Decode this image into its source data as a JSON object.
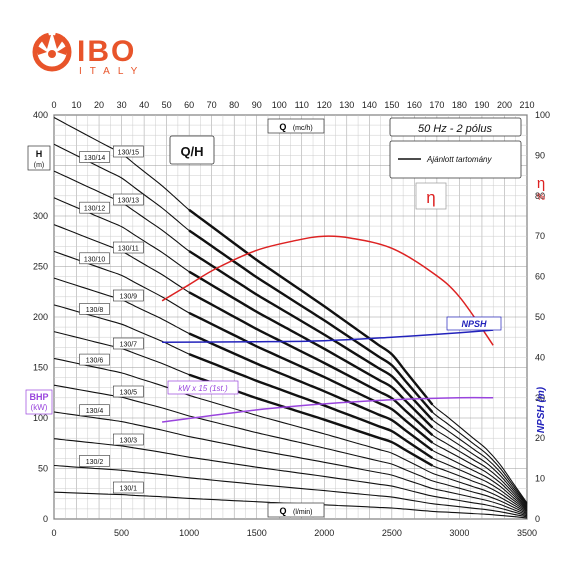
{
  "brand": {
    "name": "IBO",
    "sub": "ITALY",
    "color": "#e8542a"
  },
  "chart_data": {
    "type": "line",
    "title": "Q/H",
    "frequency_label": "50 Hz - 2 pólus",
    "legend_label": "Ajánlott tartomány",
    "x_bottom": {
      "label": "Q",
      "unit": "(l/min)",
      "range": [
        0,
        3500
      ],
      "ticks": [
        0,
        500,
        1000,
        1500,
        2000,
        2500,
        3000,
        3500
      ]
    },
    "x_top": {
      "label": "Q",
      "unit": "(mc/h)",
      "range": [
        0,
        210
      ],
      "ticks": [
        0,
        10,
        20,
        30,
        40,
        50,
        60,
        70,
        80,
        90,
        100,
        110,
        120,
        130,
        140,
        150,
        160,
        170,
        180,
        190,
        200,
        210
      ]
    },
    "y_left": {
      "label": "H",
      "unit": "(m)",
      "range": [
        0,
        400
      ],
      "ticks": [
        0,
        50,
        100,
        150,
        200,
        250,
        300,
        350,
        400
      ]
    },
    "y_left_bhp": {
      "label": "BHP",
      "unit": "(kW)"
    },
    "y_right_eta": {
      "label": "η",
      "unit": "%",
      "range": [
        0,
        100
      ],
      "ticks": [
        0,
        10,
        20,
        30,
        40,
        50,
        60,
        70,
        80,
        90,
        100
      ]
    },
    "y_right_npsh": {
      "label": "NPSH (m)"
    },
    "eta_symbol": "η",
    "npsh_label": "NPSH",
    "kw_label": "kW x 15 (1st.)",
    "colors": {
      "hq": "#111111",
      "eta": "#dd2222",
      "npsh": "#2222bb",
      "kw": "#9944dd"
    },
    "hq_series": [
      {
        "name": "130/1",
        "shutoff": 26.5
      },
      {
        "name": "130/2",
        "shutoff": 53
      },
      {
        "name": "130/3",
        "shutoff": 79.5
      },
      {
        "name": "130/4",
        "shutoff": 106
      },
      {
        "name": "130/5",
        "shutoff": 132.5
      },
      {
        "name": "130/6",
        "shutoff": 159
      },
      {
        "name": "130/7",
        "shutoff": 185.5
      },
      {
        "name": "130/8",
        "shutoff": 212
      },
      {
        "name": "130/9",
        "shutoff": 238.5
      },
      {
        "name": "130/10",
        "shutoff": 265
      },
      {
        "name": "130/11",
        "shutoff": 291.5
      },
      {
        "name": "130/12",
        "shutoff": 318
      },
      {
        "name": "130/13",
        "shutoff": 344.5
      },
      {
        "name": "130/14",
        "shutoff": 371
      },
      {
        "name": "130/15",
        "shutoff": 397.5
      }
    ],
    "hq_shape_ratio": {
      "q": [
        0,
        500,
        800,
        1000,
        1500,
        2000,
        2500,
        2800,
        3000,
        3250,
        3500
      ],
      "ratio": [
        1.0,
        0.91,
        0.83,
        0.77,
        0.645,
        0.53,
        0.41,
        0.285,
        0.23,
        0.16,
        0.04
      ]
    },
    "eta_curve": {
      "q_lmin": [
        800,
        1000,
        1200,
        1500,
        1800,
        2000,
        2200,
        2500,
        2800,
        3000,
        3250
      ],
      "eta_pct": [
        54,
        58,
        62,
        66.5,
        69,
        70,
        69.5,
        67,
        61,
        55,
        43
      ]
    },
    "npsh_curve": {
      "q_lmin": [
        800,
        1500,
        2000,
        2500,
        3000,
        3250
      ],
      "value": [
        175,
        175.5,
        176.5,
        180,
        184.5,
        187
      ]
    },
    "kw_curve": {
      "q_lmin": [
        800,
        1500,
        2000,
        2500,
        3000,
        3250
      ],
      "value": [
        96,
        108,
        114,
        118,
        120,
        120
      ]
    }
  }
}
